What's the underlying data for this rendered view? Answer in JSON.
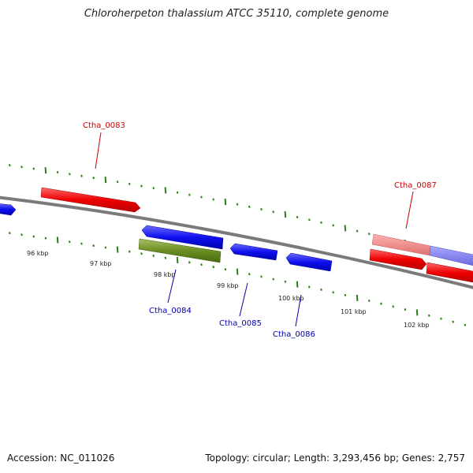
{
  "title": "Chloroherpeton thalassium ATCC 35110, complete genome",
  "footer": {
    "accession": "Accession: NC_011026",
    "summary": "Topology: circular; Length: 3,293,456 bp; Genes: 2,757"
  },
  "ticks": [
    "96 kbp",
    "97 kbp",
    "98 kbp",
    "99 kbp",
    "100 kbp",
    "101 kbp",
    "102 kbp"
  ],
  "genes": {
    "ctha_0083": "Ctha_0083",
    "ctha_0084": "Ctha_0084",
    "ctha_0085": "Ctha_0085",
    "ctha_0086": "Ctha_0086",
    "ctha_0087": "Ctha_0087"
  },
  "colors": {
    "forward_strand": "#ee0000",
    "reverse_strand": "#1010ee",
    "highlight_gene": "#6b8e23",
    "forward_label": "#cc0000",
    "reverse_label": "#0000aa",
    "ticks": "#2e7d1a",
    "backbone": "#7a7a7a"
  }
}
